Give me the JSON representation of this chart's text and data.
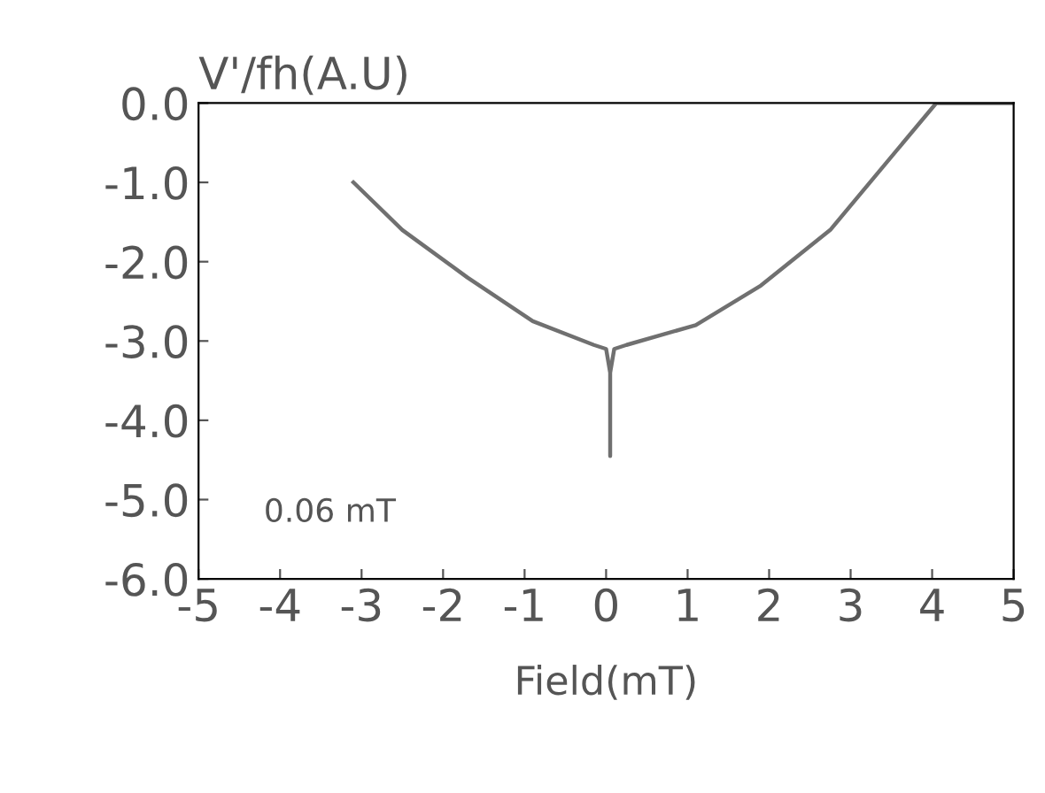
{
  "chart_data": {
    "type": "line",
    "ylabel": "V'/fh(A.U)",
    "xlabel": "Field(mT)",
    "series": [
      {
        "color": "#707070",
        "x": [
          -3.1,
          -2.5,
          -1.7,
          -0.9,
          -0.15,
          0.0,
          0.05,
          0.05,
          0.05,
          0.1,
          0.25,
          1.1,
          1.9,
          2.75,
          3.4,
          4.05,
          5.0
        ],
        "values": [
          -1.0,
          -1.6,
          -2.2,
          -2.75,
          -3.05,
          -3.1,
          -3.4,
          -4.45,
          -3.4,
          -3.1,
          -3.05,
          -2.8,
          -2.3,
          -1.6,
          -0.8,
          0.0,
          0.0
        ]
      }
    ],
    "xlim": [
      -5,
      5
    ],
    "xticks": [
      -5,
      -4,
      -3,
      -2,
      -1,
      0,
      1,
      2,
      3,
      4,
      5
    ],
    "ylim": [
      -6,
      0
    ],
    "yticks": [
      {
        "value": -6,
        "label": "-6.0"
      },
      {
        "value": -5,
        "label": "-5.0"
      },
      {
        "value": -4,
        "label": "-4.0"
      },
      {
        "value": -3,
        "label": "-3.0"
      },
      {
        "value": -2,
        "label": "-2.0"
      },
      {
        "value": -1,
        "label": "-1.0"
      },
      {
        "value": 0,
        "label": "0.0"
      }
    ],
    "annotations": [
      "0.06 mT"
    ],
    "grid": false,
    "legend": false
  }
}
